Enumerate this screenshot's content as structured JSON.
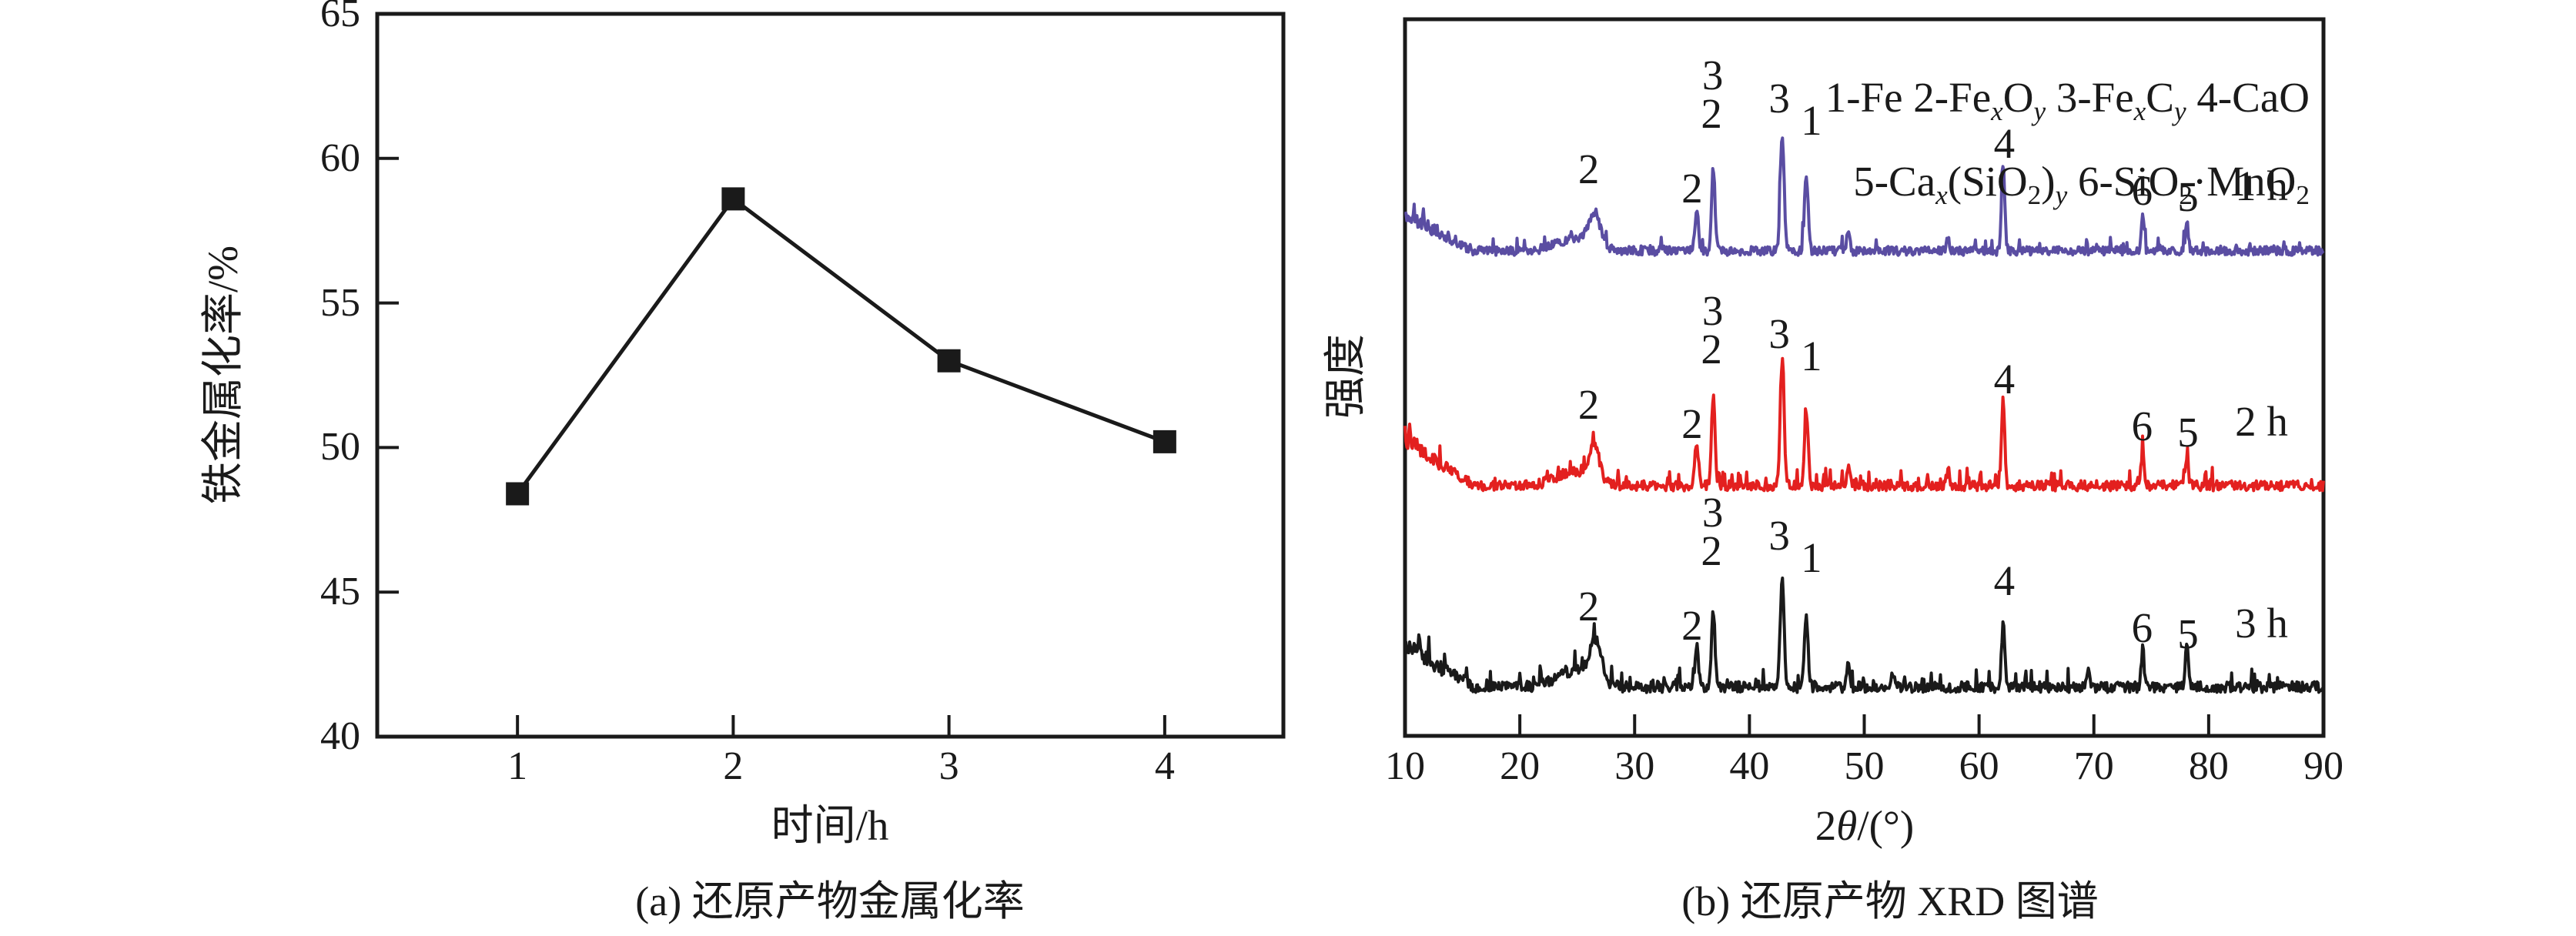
{
  "figure": {
    "caption_a": "(a) 还原产物金属化率",
    "caption_b": "(b) 还原产物 XRD 图谱"
  },
  "chart_data": [
    {
      "id": "metallization-rate",
      "type": "line",
      "title": "",
      "xlabel": "时间/h",
      "ylabel": "铁金属化率/%",
      "x": [
        1,
        2,
        3,
        4
      ],
      "y": [
        48.4,
        58.6,
        53.0,
        50.2
      ],
      "xlim": [
        0.35,
        4.55
      ],
      "ylim": [
        40,
        65
      ],
      "xticks": [
        1,
        2,
        3,
        4
      ],
      "yticks": [
        40,
        45,
        50,
        55,
        60,
        65
      ],
      "line_color": "#1a1a1a",
      "marker": "square",
      "grid": "off"
    },
    {
      "id": "xrd-patterns",
      "type": "line-multi",
      "title": "",
      "ylabel": "强度",
      "xlabel_segments": [
        {
          "t": "2"
        },
        {
          "t": "θ",
          "i": true
        },
        {
          "t": "/(°)"
        }
      ],
      "xlim": [
        10,
        90
      ],
      "xticks": [
        10,
        20,
        30,
        40,
        50,
        60,
        70,
        80,
        90
      ],
      "grid": "off",
      "legend_lines": [
        [
          {
            "t": "1-Fe 2-Fe"
          },
          {
            "t": "x",
            "sub": true,
            "i": true
          },
          {
            "t": "O"
          },
          {
            "t": "y",
            "sub": true,
            "i": true
          },
          {
            "t": " 3-Fe"
          },
          {
            "t": "x",
            "sub": true,
            "i": true
          },
          {
            "t": "C"
          },
          {
            "t": "y",
            "sub": true,
            "i": true
          },
          {
            "t": " 4-CaO"
          }
        ],
        [
          {
            "t": "5-Ca"
          },
          {
            "t": "x",
            "sub": true,
            "i": true
          },
          {
            "t": "(SiO"
          },
          {
            "t": "2",
            "sub": true
          },
          {
            "t": ")"
          },
          {
            "t": "y",
            "sub": true,
            "i": true
          },
          {
            "t": " 6-SiO"
          },
          {
            "t": "2",
            "sub": true
          },
          {
            "t": "·MnO"
          },
          {
            "t": "2",
            "sub": true
          }
        ]
      ],
      "series": [
        {
          "name": "1 h",
          "color": "#5a4da2",
          "baseline": 332,
          "noise": 13,
          "ramp": 42,
          "seed": 11,
          "peaks": [
            [
              24.8,
              16,
              1.6
            ],
            [
              26.5,
              40,
              0.5
            ],
            [
              35.4,
              55,
              0.15
            ],
            [
              36.85,
              108,
              0.15
            ],
            [
              42.85,
              152,
              0.17
            ],
            [
              44.95,
              98,
              0.16
            ],
            [
              48.6,
              26,
              0.13
            ],
            [
              57.3,
              18,
              0.12
            ],
            [
              62.1,
              112,
              0.14
            ],
            [
              74.25,
              44,
              0.13
            ],
            [
              78.1,
              36,
              0.13
            ]
          ]
        },
        {
          "name": "2 h",
          "color": "#e3201f",
          "baseline": 638,
          "noise": 15,
          "ramp": 55,
          "seed": 23,
          "peaks": [
            [
              24.8,
              18,
              1.6
            ],
            [
              26.5,
              46,
              0.4
            ],
            [
              35.4,
              58,
              0.15
            ],
            [
              36.85,
              118,
              0.15
            ],
            [
              42.85,
              162,
              0.17
            ],
            [
              44.95,
              100,
              0.16
            ],
            [
              48.6,
              26,
              0.13
            ],
            [
              57.3,
              22,
              0.12
            ],
            [
              62.1,
              112,
              0.14
            ],
            [
              74.25,
              46,
              0.13
            ],
            [
              78.1,
              38,
              0.13
            ]
          ]
        },
        {
          "name": "3 h",
          "color": "#1a1a1a",
          "baseline": 900,
          "noise": 16,
          "ramp": 46,
          "seed": 37,
          "peaks": [
            [
              24.8,
              20,
              1.6
            ],
            [
              26.6,
              52,
              0.5
            ],
            [
              35.4,
              52,
              0.15
            ],
            [
              36.85,
              100,
              0.15
            ],
            [
              42.85,
              138,
              0.17
            ],
            [
              44.95,
              92,
              0.16
            ],
            [
              48.6,
              28,
              0.13
            ],
            [
              52.5,
              18,
              0.12
            ],
            [
              62.1,
              84,
              0.14
            ],
            [
              69.5,
              18,
              0.12
            ],
            [
              74.25,
              48,
              0.13
            ],
            [
              78.1,
              58,
              0.13
            ]
          ]
        }
      ],
      "annotations": [
        {
          "x": 26.0,
          "dy": 140,
          "label": "2"
        },
        {
          "x": 35.0,
          "dy": 115,
          "label": "2"
        },
        {
          "x": 36.7,
          "dy": 212,
          "label": "2"
        },
        {
          "x": 36.8,
          "dy": 262,
          "label": "3"
        },
        {
          "x": 42.6,
          "dy": 232,
          "label": "3"
        },
        {
          "x": 45.4,
          "dy": 203,
          "label": "1"
        },
        {
          "x": 62.2,
          "dy": 173,
          "label": "4"
        },
        {
          "x": 74.2,
          "dy": 112,
          "label": "6"
        },
        {
          "x": 78.2,
          "dy": 104,
          "label": "5"
        }
      ],
      "time_label_x": 84.6,
      "time_label_dy": 118
    }
  ]
}
